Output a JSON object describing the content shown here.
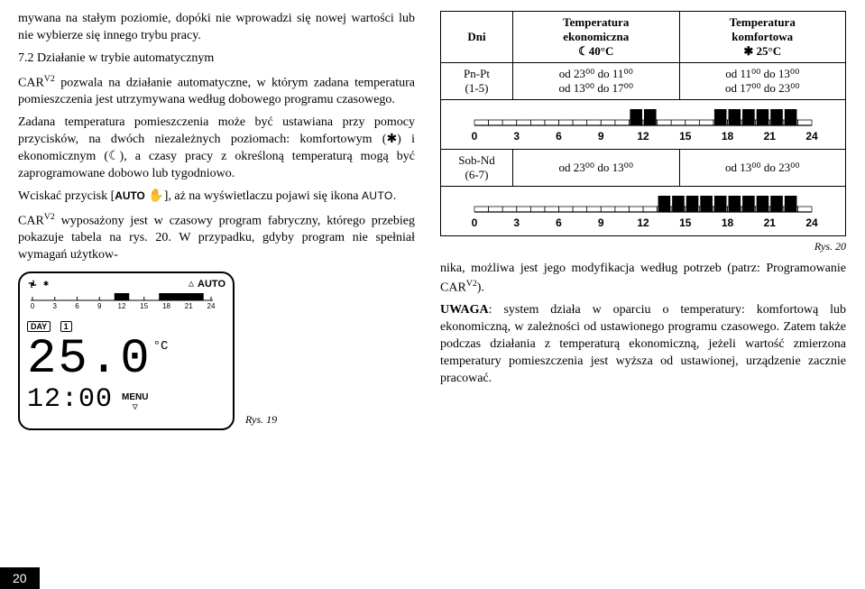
{
  "left": {
    "p1": "mywana na stałym poziomie, dopóki nie wprowadzi się nowej wartości lub nie wybierze się innego trybu pracy.",
    "heading": "7.2 Działanie w trybie automatycznym",
    "p2a": "CAR",
    "p2a_sup": "V2",
    "p2b": " pozwala na działanie automatyczne, w którym zadana temperatura pomieszczenia jest utrzymywana według dobowego programu czasowego.",
    "p3": "Zadana temperatura pomieszczenia może być ustawiana przy pomocy przycisków, na dwóch niezależnych poziomach: komfortowym (✱) i ekonomicznym (☾), a czasy pracy z określoną temperaturą mogą być zaprogramowane dobowo lub tygodniowo.",
    "p4a": "Wciskać przycisk [",
    "p4_btn": "AUTO",
    "p4b": " ✋], aż na wyświetlaczu pojawi się ikona ",
    "p4_icon": "AUTO",
    "p4c": ".",
    "p5a": "CAR",
    "p5a_sup": "V2",
    "p5b": "  wyposażony jest w czasowy program fabryczny, którego przebieg pokazuje tabela na rys. 20. W przypadku, gdyby program nie spełniał wymagań użytkow-",
    "fig19_label": "Rys. 19",
    "device": {
      "timeline_ticks": [
        "0",
        "3",
        "6",
        "9",
        "12",
        "15",
        "18",
        "21",
        "24"
      ],
      "day_label": "DAY",
      "day_num": "1",
      "auto_label": "AUTO",
      "temp_big": "25.0",
      "temp_unit": "°C",
      "time": "12:00",
      "menu_label": "MENU"
    }
  },
  "right": {
    "table": {
      "header": {
        "c1": "Dni",
        "c2_line1": "Temperatura",
        "c2_line2": "ekonomiczna",
        "c2_line3": "☾40°C",
        "c3_line1": "Temperatura",
        "c3_line2": "komfortowa",
        "c3_line3": "✱ 25°C"
      },
      "row1": {
        "c1_line1": "Pn-Pt",
        "c1_line2": "(1-5)",
        "c2_line1": "od 23⁰⁰ do 11⁰⁰",
        "c2_line2": "od 13⁰⁰ do 17⁰⁰",
        "c3_line1": "od 11⁰⁰ do 13⁰⁰",
        "c3_line2": "od 17⁰⁰ do 23⁰⁰"
      },
      "timeline_ticks": [
        "0",
        "3",
        "6",
        "9",
        "12",
        "15",
        "18",
        "21",
        "24"
      ],
      "row2": {
        "c1_line1": "Sob-Nd",
        "c1_line2": "(6-7)",
        "c2": "od 23⁰⁰ do 13⁰⁰",
        "c3": "od 13⁰⁰ do 23⁰⁰"
      }
    },
    "fig20_label": "Rys. 20",
    "p1a": "nika, możliwa jest jego modyfikacja według potrzeb (patrz: Programowanie CAR",
    "p1_sup": "V2",
    "p1b": ").",
    "p2a": "UWAGA",
    "p2b": ": system działa w oparciu o temperatury: komfortową lub ekonomiczną, w zależności od ustawionego programu czasowego. ",
    "p2c": "Zatem także podczas działania z temperaturą ekonomiczną, jeżeli wartość zmierzona temperatury pomieszczenia jest wyższa od ustawionej, urządzenie zacznie pracować."
  },
  "page_number": "20",
  "colors": {
    "text": "#000000",
    "bg": "#ffffff",
    "fill_active": "#000000"
  }
}
